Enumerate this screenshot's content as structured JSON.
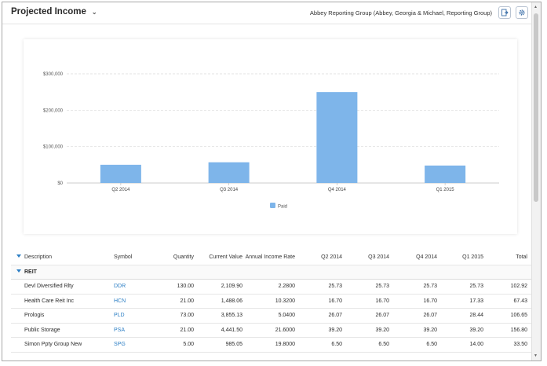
{
  "header": {
    "title": "Projected Income",
    "group": "Abbey Reporting Group (Abbey, Georgia & Michael, Reporting Group)"
  },
  "chart_data": {
    "type": "bar",
    "categories": [
      "Q2 2014",
      "Q3 2014",
      "Q4 2014",
      "Q1 2015"
    ],
    "series": [
      {
        "name": "Paid",
        "values": [
          50000,
          57000,
          250000,
          48000
        ]
      }
    ],
    "ylim": [
      0,
      300000
    ],
    "yticks": [
      "$0",
      "$100,000",
      "$200,000",
      "$300,000"
    ],
    "ytick_values": [
      0,
      100000,
      200000,
      300000
    ],
    "legend": "bottom",
    "grid": true,
    "colors": {
      "bar": "#7eb5ea",
      "grid": "#dadada"
    }
  },
  "table": {
    "columns": [
      "Description",
      "Symbol",
      "Quantity",
      "Current Value",
      "Annual Income Rate",
      "Q2 2014",
      "Q3 2014",
      "Q4 2014",
      "Q1 2015",
      "Total"
    ],
    "group": "REIT",
    "rows": [
      [
        "Devl Diversified Rlty",
        "DDR",
        "130.00",
        "2,109.90",
        "2.2800",
        "25.73",
        "25.73",
        "25.73",
        "25.73",
        "102.92"
      ],
      [
        "Health Care Reit Inc",
        "HCN",
        "21.00",
        "1,488.06",
        "10.3200",
        "16.70",
        "16.70",
        "16.70",
        "17.33",
        "67.43"
      ],
      [
        "Prologis",
        "PLD",
        "73.00",
        "3,855.13",
        "5.0400",
        "26.07",
        "26.07",
        "26.07",
        "28.44",
        "106.65"
      ],
      [
        "Public Storage",
        "PSA",
        "21.00",
        "4,441.50",
        "21.6000",
        "39.20",
        "39.20",
        "39.20",
        "39.20",
        "156.80"
      ],
      [
        "Simon Ppty Group New",
        "SPG",
        "5.00",
        "985.05",
        "19.8000",
        "6.50",
        "6.50",
        "6.50",
        "14.00",
        "33.50"
      ]
    ]
  }
}
